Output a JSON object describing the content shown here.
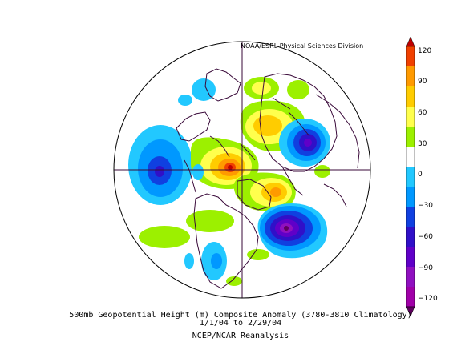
{
  "header": {
    "credit": "NOAA/ESRL Physical Sciences Division"
  },
  "colorbar": {
    "labels": [
      "120",
      "90",
      "60",
      "30",
      "0",
      "−30",
      "−60",
      "−90",
      "−120"
    ],
    "colors": [
      "#c00000",
      "#f04000",
      "#ff9a00",
      "#ffcc00",
      "#ffff4d",
      "#9cf000",
      "#ffffff",
      "#22c8ff",
      "#0098ff",
      "#1040e0",
      "#3010c8",
      "#6000c8",
      "#9010c0",
      "#a000a8",
      "#600060"
    ]
  },
  "caption": {
    "line1": "500mb Geopotential Height (m) Composite Anomaly (3780-3810 Climatology)",
    "line2": "1/1/04 to 2/29/04",
    "line3": "NCEP/NCAR Reanalysis"
  },
  "map": {
    "projection": "north polar stereographic",
    "anomalies": [
      {
        "region": "central North Pacific",
        "sign": "negative",
        "level": -60
      },
      {
        "region": "Beaufort Sea / Alaska",
        "sign": "positive",
        "level": 120
      },
      {
        "region": "Greenland / Baffin",
        "sign": "positive",
        "level": 60
      },
      {
        "region": "northern Europe / Scandinavia",
        "sign": "positive",
        "level": 60
      },
      {
        "region": "western Russia",
        "sign": "negative",
        "level": -90
      },
      {
        "region": "eastern North America / NW Atlantic",
        "sign": "negative",
        "level": -120
      }
    ]
  }
}
